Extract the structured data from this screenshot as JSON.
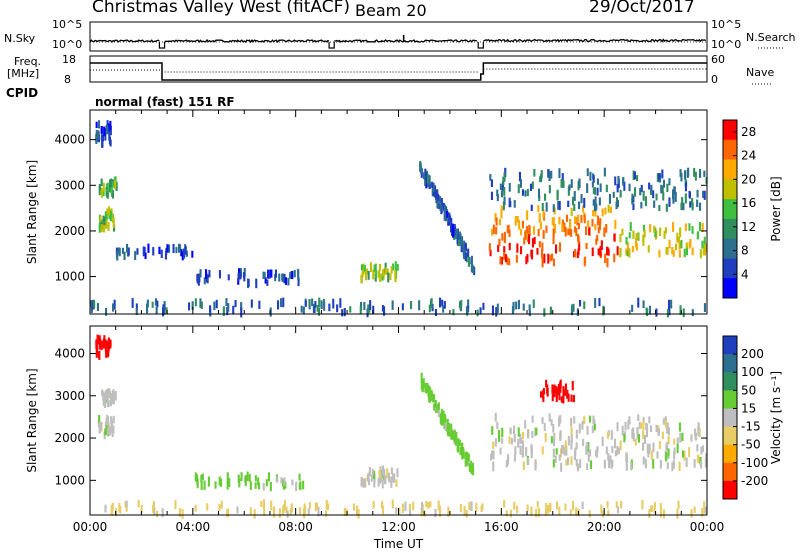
{
  "header": {
    "station": "Christmas Valley West (fitACF)",
    "beam": "Beam 20",
    "date": "29/Oct/2017"
  },
  "panels": {
    "nsky_label": "N.Sky",
    "nsearch_label": "N.Search",
    "nsky_ticks": [
      "10^5",
      "10^0"
    ],
    "nsearch_ticks": [
      "10^5",
      "10^0"
    ],
    "freq_label_1": "Freq.",
    "freq_label_2": "[MHz]",
    "freq_ticks": [
      "18",
      "8"
    ],
    "nave_label": "Nave",
    "nave_ticks": [
      "60",
      "0"
    ],
    "cpid_label": "CPID",
    "mode_text": "normal (fast) 151 RF"
  },
  "chart_data": [
    {
      "type": "heatmap",
      "name": "power",
      "xlabel": "Time UT",
      "ylabel": "Slant Range [km]",
      "x_ticks": [
        "00:00",
        "04:00",
        "08:00",
        "12:00",
        "16:00",
        "20:00",
        "00:00"
      ],
      "y_ticks": [
        1000,
        2000,
        3000,
        4000
      ],
      "ylim": [
        180,
        4650
      ],
      "colorbar_label": "Power [dB]",
      "colorbar_ticks": [
        4,
        8,
        12,
        16,
        20,
        24,
        28
      ],
      "colorbar_range": [
        0,
        30
      ],
      "colors": [
        "#0000ff",
        "#1f3fbf",
        "#2d6f8f",
        "#2f8f5f",
        "#3fbf3f",
        "#bfbf00",
        "#ffaa00",
        "#ff6600",
        "#ff0000"
      ],
      "regions": [
        {
          "t": [
            0.2,
            0.9
          ],
          "r": [
            2050,
            2450
          ],
          "level": 16
        },
        {
          "t": [
            0.3,
            1.0
          ],
          "r": [
            2800,
            3100
          ],
          "level": 14
        },
        {
          "t": [
            0.2,
            0.8
          ],
          "r": [
            3900,
            4350
          ],
          "level": 6
        },
        {
          "t": [
            1.0,
            4.0
          ],
          "r": [
            1450,
            1650
          ],
          "level": 6
        },
        {
          "t": [
            4.0,
            8.3
          ],
          "r": [
            850,
            1100
          ],
          "level": 6
        },
        {
          "t": [
            10.5,
            12.0
          ],
          "r": [
            900,
            1250
          ],
          "level": 16
        },
        {
          "t": [
            12.8,
            14.9
          ],
          "r": [
            1200,
            3400
          ],
          "level": 7
        },
        {
          "t": [
            15.5,
            20.5
          ],
          "r": [
            1300,
            2500
          ],
          "level": 26
        },
        {
          "t": [
            20.5,
            24.0
          ],
          "r": [
            1500,
            2100
          ],
          "level": 18
        },
        {
          "t": [
            15.5,
            24.0
          ],
          "r": [
            2500,
            3300
          ],
          "level": 9
        },
        {
          "t": [
            0.0,
            24.0
          ],
          "r": [
            200,
            450
          ],
          "level": 8
        }
      ]
    },
    {
      "type": "heatmap",
      "name": "velocity",
      "xlabel": "Time UT",
      "ylabel": "Slant Range [km]",
      "x_ticks": [
        "00:00",
        "04:00",
        "08:00",
        "12:00",
        "16:00",
        "20:00",
        "00:00"
      ],
      "y_ticks": [
        1000,
        2000,
        3000,
        4000
      ],
      "ylim": [
        180,
        4650
      ],
      "colorbar_label": "Velocity [m s⁻¹]",
      "colorbar_ticks": [
        200,
        100,
        50,
        15,
        -15,
        -50,
        -100,
        -200
      ],
      "colorbar_range": [
        -250,
        250
      ],
      "colors": [
        "#1f3fbf",
        "#2d6f8f",
        "#2f8f5f",
        "#66cc33",
        "#bebebe",
        "#e8cc66",
        "#ffaa00",
        "#ff6600",
        "#ff0000"
      ],
      "regions": [
        {
          "t": [
            0.2,
            0.8
          ],
          "r": [
            3950,
            4350
          ],
          "level": -220
        },
        {
          "t": [
            0.3,
            0.9
          ],
          "r": [
            2050,
            2450
          ],
          "level": 0
        },
        {
          "t": [
            0.4,
            1.0
          ],
          "r": [
            2800,
            3100
          ],
          "level": 0
        },
        {
          "t": [
            4.0,
            8.3
          ],
          "r": [
            850,
            1100
          ],
          "level": 30
        },
        {
          "t": [
            10.5,
            12.0
          ],
          "r": [
            900,
            1250
          ],
          "level": 0
        },
        {
          "t": [
            12.8,
            14.9
          ],
          "r": [
            1200,
            3400
          ],
          "level": 30
        },
        {
          "t": [
            15.5,
            24.0
          ],
          "r": [
            1300,
            2500
          ],
          "level": 0
        },
        {
          "t": [
            17.5,
            18.8
          ],
          "r": [
            2900,
            3300
          ],
          "level": -220
        },
        {
          "t": [
            0.0,
            24.0
          ],
          "r": [
            200,
            450
          ],
          "level": -30
        }
      ]
    }
  ]
}
